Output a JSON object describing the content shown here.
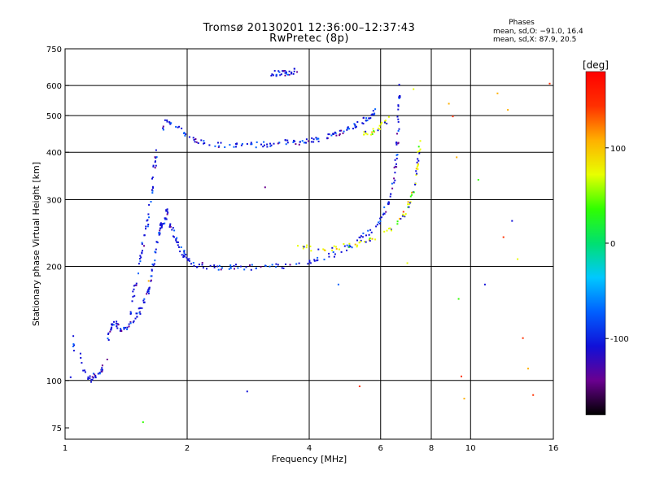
{
  "chart_data": {
    "type": "scatter",
    "title": "Tromsø 20130201 12:36:00–12:37:43",
    "subtitle": "RwPretec (8p)",
    "xlabel": "Frequency [MHz]",
    "ylabel": "Stationary phase Virtual Height [km]",
    "xscale": "log",
    "yscale": "log",
    "xlim": [
      1,
      16
    ],
    "ylim": [
      70,
      750
    ],
    "x_ticks": [
      1,
      2,
      4,
      6,
      8,
      10,
      16
    ],
    "x_grid": [
      2,
      4,
      6,
      8,
      10
    ],
    "y_ticks": [
      75,
      100,
      200,
      300,
      400,
      500,
      600,
      750
    ],
    "y_grid": [
      100,
      200,
      300,
      400,
      500,
      600
    ],
    "grid": true,
    "colorbar": {
      "label": "[deg]",
      "range": [
        -180,
        180
      ],
      "ticks": [
        100,
        0,
        -100
      ],
      "colors": [
        "#000000",
        "#6a0090",
        "#1010d8",
        "#0060ff",
        "#00c8ff",
        "#00e070",
        "#30ff00",
        "#e8ff00",
        "#ffb000",
        "#ff3000",
        "#ff0000"
      ]
    },
    "stats": {
      "heading": "Phases",
      "o_mode": "mean, sd,O: −91.0, 16.4",
      "x_mode": "mean, sd,X:  87.9, 20.5"
    },
    "series": [
      {
        "segments": [
          {
            "x": [
              1.03,
              1.05,
              1.12,
              1.16,
              1.18,
              1.22,
              1.25,
              1.28,
              1.3,
              1.33,
              1.36,
              1.4,
              1.45,
              1.5,
              1.53,
              1.56,
              1.6,
              1.63,
              1.65,
              1.68,
              1.7,
              1.72,
              1.74,
              1.76,
              1.78
            ],
            "y": [
              101,
              133,
              103,
              101,
              104,
              106,
              110,
              137,
              140,
              142,
              138,
              137,
              143,
              150,
              155,
              165,
              175,
              190,
              210,
              235,
              250,
              258,
              262,
              270,
              285
            ]
          },
          {
            "x": [
              1.44,
              1.47,
              1.5,
              1.53,
              1.56,
              1.59,
              1.62,
              1.64,
              1.66,
              1.68
            ],
            "y": [
              150,
              170,
              190,
              215,
              240,
              265,
              300,
              340,
              380,
              410
            ]
          },
          {
            "x": [
              1.8,
              1.84,
              1.88,
              1.92,
              1.96,
              2.0,
              2.1,
              2.25,
              2.4,
              2.6,
              2.8,
              3.0,
              3.3,
              3.6,
              4.0,
              4.4,
              4.8,
              5.1,
              5.4,
              5.7,
              6.0,
              6.2,
              6.35,
              6.45,
              6.52,
              6.56,
              6.6,
              6.64,
              6.68
            ],
            "y": [
              265,
              248,
              235,
              224,
              215,
              208,
              203,
              201,
              200,
              200,
              200,
              200,
              201,
              203,
              207,
              213,
              220,
              228,
              240,
              252,
              270,
              290,
              310,
              340,
              380,
              420,
              480,
              550,
              620
            ]
          },
          {
            "x": [
              1.72,
              1.78,
              1.9,
              2.0,
              2.1,
              2.3,
              2.5,
              2.7,
              2.9,
              3.1,
              3.3,
              3.5,
              3.7,
              3.9,
              4.1,
              4.3,
              4.5,
              4.7,
              4.9,
              5.1,
              5.3,
              5.5,
              5.7,
              5.8
            ],
            "y": [
              460,
              490,
              470,
              440,
              430,
              420,
              418,
              418,
              420,
              422,
              425,
              428,
              425,
              428,
              433,
              440,
              445,
              452,
              460,
              470,
              480,
              492,
              505,
              520
            ]
          },
          {
            "x": [
              3.2,
              3.3,
              3.4,
              3.5,
              3.6,
              3.7
            ],
            "y": [
              650,
              648,
              652,
              650,
              655,
              658
            ]
          }
        ]
      },
      {
        "segments": [
          {
            "x": [
              3.7,
              4.0,
              4.4,
              4.8,
              5.2,
              5.6,
              6.0,
              6.4,
              6.8,
              7.0,
              7.15,
              7.25,
              7.35,
              7.42,
              7.48
            ],
            "y": [
              226,
              225,
              224,
              226,
              230,
              235,
              243,
              255,
              272,
              290,
              310,
              335,
              365,
              395,
              430
            ]
          },
          {
            "x": [
              5.3,
              5.6,
              5.9,
              6.1,
              6.3
            ],
            "y": [
              445,
              452,
              460,
              480,
              500
            ]
          }
        ]
      }
    ],
    "scattered_points": {
      "x": [
        1.55,
        1.6,
        2.8,
        3.1,
        4.7,
        5.3,
        6.8,
        6.95,
        7.2,
        8.8,
        9.0,
        9.2,
        9.3,
        9.45,
        9.6,
        10.4,
        10.8,
        11.6,
        12.0,
        12.3,
        12.6,
        13.0,
        13.4,
        13.8,
        14.2,
        15.6
      ],
      "y": [
        78,
        184,
        94,
        325,
        180,
        97,
        280,
        205,
        590,
        540,
        500,
        390,
        165,
        103,
        90,
        340,
        180,
        575,
        240,
        520,
        265,
        210,
        130,
        108,
        92,
        610
      ],
      "phase": [
        40,
        120,
        -120,
        -140,
        -90,
        140,
        150,
        60,
        80,
        100,
        150,
        120,
        40,
        160,
        100,
        20,
        -100,
        90,
        150,
        110,
        -100,
        80,
        150,
        110,
        140,
        150
      ]
    }
  }
}
